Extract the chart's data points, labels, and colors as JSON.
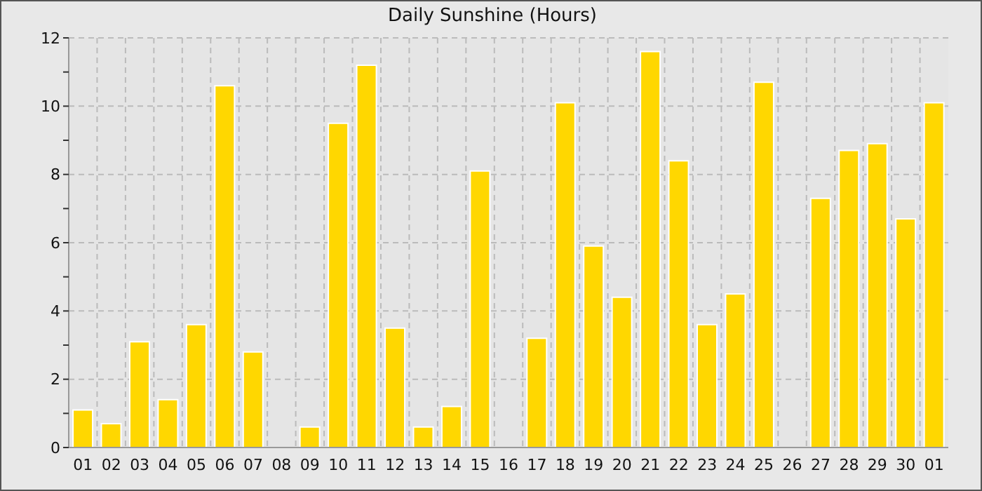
{
  "chart_data": {
    "type": "bar",
    "title": "Daily Sunshine (Hours)",
    "categories": [
      "01",
      "02",
      "03",
      "04",
      "05",
      "06",
      "07",
      "08",
      "09",
      "10",
      "11",
      "12",
      "13",
      "14",
      "15",
      "16",
      "17",
      "18",
      "19",
      "20",
      "21",
      "22",
      "23",
      "24",
      "25",
      "26",
      "27",
      "28",
      "29",
      "30",
      "01"
    ],
    "values": [
      1.1,
      0.7,
      3.1,
      1.4,
      3.6,
      10.6,
      2.8,
      0,
      0.6,
      9.5,
      11.2,
      3.5,
      0.6,
      1.2,
      8.1,
      0,
      3.2,
      10.1,
      5.9,
      4.4,
      11.6,
      8.4,
      3.6,
      4.5,
      10.7,
      0,
      7.3,
      8.7,
      8.9,
      6.7,
      10.1
    ],
    "color": "#ffd700",
    "ylim": [
      0,
      12
    ],
    "yticks": [
      0,
      {
        "value": 1,
        "label": null
      },
      2,
      {
        "value": 3,
        "label": null
      },
      4,
      {
        "value": 5,
        "label": null
      },
      6,
      {
        "value": 7,
        "label": null
      },
      8,
      {
        "value": 9,
        "label": null
      },
      10,
      {
        "value": 11,
        "label": null
      },
      12
    ],
    "grid": true
  }
}
